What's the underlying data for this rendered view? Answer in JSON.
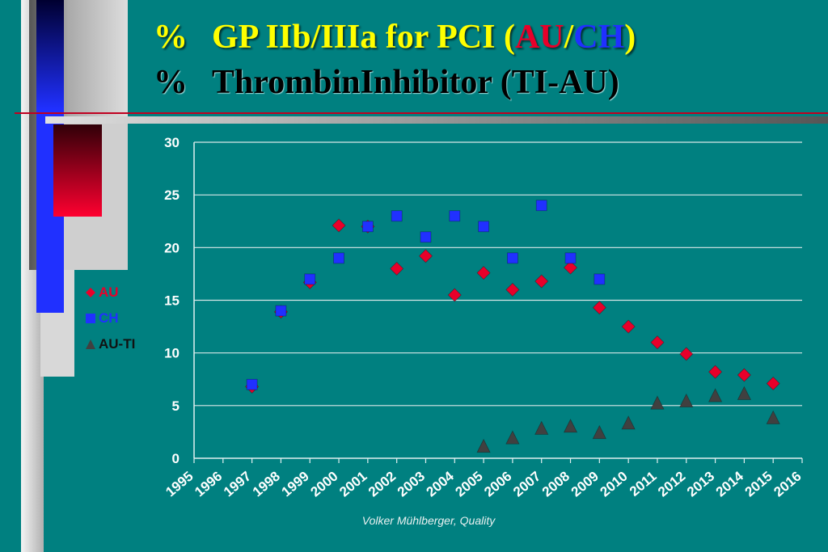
{
  "title": {
    "line1_pct": "%",
    "line1_text": "GP IIb/IIIa for PCI (",
    "line1_au": "AU",
    "line1_sep": "/",
    "line1_ch": "CH",
    "line1_close": ")",
    "line2_pct": "%",
    "line2_text": "ThrombinInhibitor (TI-AU)"
  },
  "footer": "Volker Mühlberger, Quality",
  "colors": {
    "background": "#008080",
    "au": "#e8002a",
    "ch": "#2030ff",
    "au_ti": "#404040",
    "title": "#ffff00"
  },
  "chart_data": {
    "type": "scatter",
    "x_categories": [
      "1995",
      "1996",
      "1997",
      "1998",
      "1999",
      "2000",
      "2001",
      "2002",
      "2003",
      "2004",
      "2005",
      "2006",
      "2007",
      "2008",
      "2009",
      "2010",
      "2011",
      "2012",
      "2013",
      "2014",
      "2015",
      "2016"
    ],
    "ylim": [
      0,
      30
    ],
    "yticks": [
      0,
      5,
      10,
      15,
      20,
      25,
      30
    ],
    "grid": true,
    "legend_position": "left",
    "series": [
      {
        "name": "AU",
        "marker": "diamond",
        "color": "#e8002a",
        "points": [
          {
            "x": "1997",
            "y": 6.8
          },
          {
            "x": "1998",
            "y": 13.9
          },
          {
            "x": "1999",
            "y": 16.7
          },
          {
            "x": "2000",
            "y": 22.1
          },
          {
            "x": "2001",
            "y": 22.0
          },
          {
            "x": "2002",
            "y": 18.0
          },
          {
            "x": "2003",
            "y": 19.2
          },
          {
            "x": "2004",
            "y": 15.5
          },
          {
            "x": "2005",
            "y": 17.6
          },
          {
            "x": "2006",
            "y": 16.0
          },
          {
            "x": "2007",
            "y": 16.8
          },
          {
            "x": "2008",
            "y": 18.1
          },
          {
            "x": "2009",
            "y": 14.3
          },
          {
            "x": "2010",
            "y": 12.5
          },
          {
            "x": "2011",
            "y": 11.0
          },
          {
            "x": "2012",
            "y": 9.9
          },
          {
            "x": "2013",
            "y": 8.2
          },
          {
            "x": "2014",
            "y": 7.9
          },
          {
            "x": "2015",
            "y": 7.1
          }
        ]
      },
      {
        "name": "CH",
        "marker": "square",
        "color": "#2030ff",
        "points": [
          {
            "x": "1997",
            "y": 7.0
          },
          {
            "x": "1998",
            "y": 14.0
          },
          {
            "x": "1999",
            "y": 17.0
          },
          {
            "x": "2000",
            "y": 19.0
          },
          {
            "x": "2001",
            "y": 22.0
          },
          {
            "x": "2002",
            "y": 23.0
          },
          {
            "x": "2003",
            "y": 21.0
          },
          {
            "x": "2004",
            "y": 23.0
          },
          {
            "x": "2005",
            "y": 22.0
          },
          {
            "x": "2006",
            "y": 19.0
          },
          {
            "x": "2007",
            "y": 24.0
          },
          {
            "x": "2008",
            "y": 19.0
          },
          {
            "x": "2009",
            "y": 17.0
          }
        ]
      },
      {
        "name": "AU-TI",
        "marker": "triangle",
        "color": "#404040",
        "points": [
          {
            "x": "2005",
            "y": 1.1
          },
          {
            "x": "2006",
            "y": 1.9
          },
          {
            "x": "2007",
            "y": 2.8
          },
          {
            "x": "2008",
            "y": 3.0
          },
          {
            "x": "2009",
            "y": 2.4
          },
          {
            "x": "2010",
            "y": 3.3
          },
          {
            "x": "2011",
            "y": 5.2
          },
          {
            "x": "2012",
            "y": 5.4
          },
          {
            "x": "2013",
            "y": 5.9
          },
          {
            "x": "2014",
            "y": 6.1
          },
          {
            "x": "2015",
            "y": 3.8
          }
        ]
      }
    ]
  }
}
